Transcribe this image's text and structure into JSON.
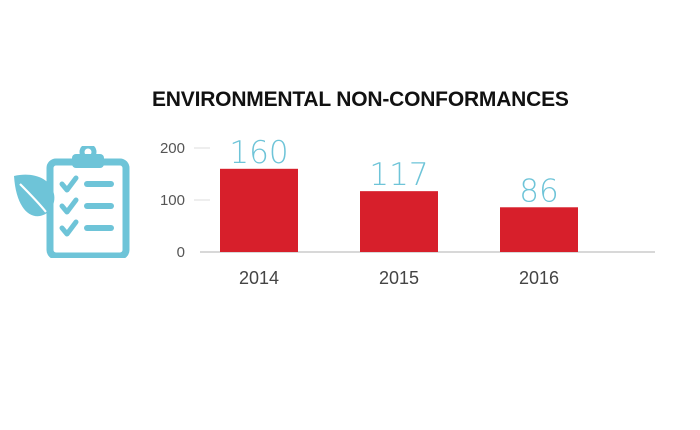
{
  "colors": {
    "bar": "#d71f2b",
    "data_label": "#6ec4d8",
    "icon": "#6ec4d8",
    "axis": "#cccccc",
    "grid": "#dddddd",
    "title": "#111111"
  },
  "icon": {
    "name": "clipboard-checklist-leaf-icon"
  },
  "chart_data": {
    "type": "bar",
    "title": "ENVIRONMENTAL NON-CONFORMANCES",
    "categories": [
      "2014",
      "2015",
      "2016"
    ],
    "values": [
      160,
      117,
      86
    ],
    "data_labels": [
      "160",
      "117",
      "86"
    ],
    "yticks": [
      0,
      100,
      200
    ],
    "ylim": [
      0,
      200
    ],
    "xlabel": "",
    "ylabel": "",
    "grid": false,
    "legend": "none"
  }
}
